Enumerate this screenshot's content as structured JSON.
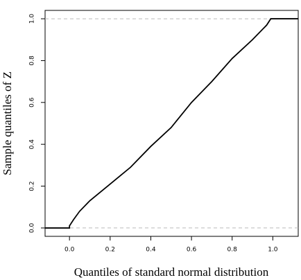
{
  "chart_data": {
    "type": "line",
    "xlabel": "Quantiles of standard normal distribution",
    "ylabel": "Sample quantiles of Z",
    "x": [
      -0.12,
      0.0,
      0.0,
      0.02,
      0.05,
      0.1,
      0.2,
      0.3,
      0.4,
      0.5,
      0.6,
      0.7,
      0.8,
      0.9,
      0.97,
      0.99,
      1.125
    ],
    "series": [
      {
        "color": "#000000",
        "values": [
          0,
          0,
          0.01,
          0.04,
          0.08,
          0.13,
          0.21,
          0.29,
          0.39,
          0.48,
          0.6,
          0.7,
          0.81,
          0.9,
          0.97,
          1.0,
          1.0
        ]
      }
    ],
    "hlines": [
      0,
      1
    ],
    "hline_color": "#bbbbbb",
    "xlim": [
      -0.12,
      1.125
    ],
    "ylim": [
      -0.04,
      1.04
    ],
    "xticks": [
      {
        "value": 0,
        "label": "0.0"
      },
      {
        "value": 0.2,
        "label": "0.2"
      },
      {
        "value": 0.4,
        "label": "0.4"
      },
      {
        "value": 0.6,
        "label": "0.6"
      },
      {
        "value": 0.8,
        "label": "0.8"
      },
      {
        "value": 1,
        "label": "1.0"
      }
    ],
    "yticks": [
      {
        "value": 0,
        "label": "0.0"
      },
      {
        "value": 0.2,
        "label": "0.2"
      },
      {
        "value": 0.4,
        "label": "0.4"
      },
      {
        "value": 0.6,
        "label": "0.6"
      },
      {
        "value": 0.8,
        "label": "0.8"
      },
      {
        "value": 1,
        "label": "1.0"
      }
    ]
  }
}
